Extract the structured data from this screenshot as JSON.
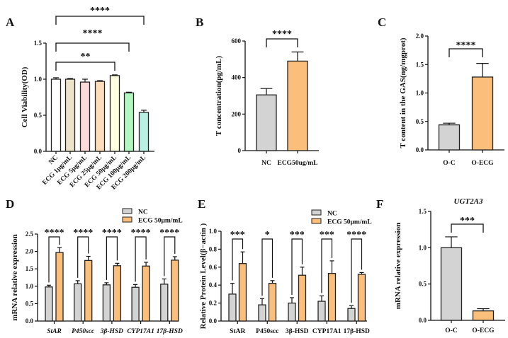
{
  "chart_data": [
    {
      "panel": "A",
      "type": "bar",
      "ylabel": "Cell Viability(OD)",
      "ylim": [
        0,
        1.5
      ],
      "yticks": [
        "0.0",
        "0.5",
        "1.0",
        "1.5"
      ],
      "categories": [
        "NC",
        "ECG 1μg/mL",
        "ECG 5μg/mL",
        "ECG 25μg/mL",
        "ECG 50μg/mL",
        "ECG 100μg/mL",
        "ECG 200μg/mL"
      ],
      "values": [
        1.0,
        1.0,
        0.96,
        0.97,
        1.05,
        0.81,
        0.54
      ],
      "errors": [
        0.02,
        0.01,
        0.04,
        0.01,
        0.01,
        0.01,
        0.03
      ],
      "colors": [
        "#ffffff",
        "#ece3c8",
        "#fbdada",
        "#fcdcb9",
        "#fefee0",
        "#b2f7c2",
        "#b6f1e4"
      ],
      "significance": [
        {
          "from": 0,
          "to": 4,
          "label": "**"
        },
        {
          "from": 0,
          "to": 5,
          "label": "****"
        },
        {
          "from": 0,
          "to": 6,
          "label": "****"
        }
      ]
    },
    {
      "panel": "B",
      "type": "bar",
      "ylabel": "T concentration(pg/mL)",
      "ylim": [
        0,
        600
      ],
      "yticks": [
        "0",
        "200",
        "400",
        "600"
      ],
      "categories": [
        "NC",
        "ECG50ug/mL"
      ],
      "values": [
        305,
        490
      ],
      "errors": [
        35,
        50
      ],
      "colors": [
        "#d3d3d3",
        "#fbbf7b"
      ],
      "significance": [
        {
          "from": 0,
          "to": 1,
          "label": "****"
        }
      ]
    },
    {
      "panel": "C",
      "type": "bar",
      "ylabel": "T content in the GAS(ng/mgprot)",
      "ylim": [
        0,
        2.0
      ],
      "yticks": [
        "0.0",
        "0.5",
        "1.0",
        "1.5",
        "2.0"
      ],
      "categories": [
        "O-C",
        "O-ECG"
      ],
      "values": [
        0.44,
        1.28
      ],
      "errors": [
        0.03,
        0.24
      ],
      "colors": [
        "#d3d3d3",
        "#fbbf7b"
      ],
      "significance": [
        {
          "from": 0,
          "to": 1,
          "label": "****"
        }
      ]
    },
    {
      "panel": "D",
      "type": "grouped-bar",
      "ylabel": "mRNA  relative expression",
      "ylim": [
        0,
        2.5
      ],
      "yticks": [
        "0.0",
        "0.5",
        "1.0",
        "1.5",
        "2.0",
        "2.5"
      ],
      "categories": [
        "StAR",
        "P450scc",
        "3β-HSD",
        "CYP17A1",
        "17β-HSD"
      ],
      "italic_categories": true,
      "legend": "top-right",
      "series": [
        {
          "name": "NC",
          "color": "#d3d3d3",
          "values": [
            0.98,
            1.07,
            1.04,
            0.97,
            1.06
          ],
          "errors": [
            0.05,
            0.09,
            0.06,
            0.08,
            0.15
          ]
        },
        {
          "name": "ECG 50μm/mL",
          "color": "#fbbf7b",
          "values": [
            1.97,
            1.74,
            1.59,
            1.58,
            1.75
          ],
          "errors": [
            0.14,
            0.12,
            0.07,
            0.11,
            0.1
          ]
        }
      ],
      "significance": [
        "****",
        "****",
        "****",
        "****",
        "****"
      ]
    },
    {
      "panel": "E",
      "type": "grouped-bar",
      "ylabel": "Relative Protein Level(β−actin )",
      "ylim": [
        0,
        1.0
      ],
      "yticks": [
        "0.0",
        "0.2",
        "0.4",
        "0.6",
        "0.8",
        "1.0"
      ],
      "categories": [
        "StAR",
        "P450scc",
        "3β-HSD",
        "CYP17A1",
        "17β-HSD"
      ],
      "italic_categories": false,
      "legend": "top-right",
      "series": [
        {
          "name": "NC",
          "color": "#d3d3d3",
          "values": [
            0.3,
            0.18,
            0.2,
            0.22,
            0.14
          ],
          "errors": [
            0.12,
            0.07,
            0.06,
            0.06,
            0.03
          ]
        },
        {
          "name": "ECG 50μm/mL",
          "color": "#fbbf7b",
          "values": [
            0.64,
            0.42,
            0.51,
            0.53,
            0.52
          ],
          "errors": [
            0.13,
            0.03,
            0.09,
            0.14,
            0.02
          ]
        }
      ],
      "significance": [
        "***",
        "*",
        "***",
        "***",
        "****"
      ]
    },
    {
      "panel": "F",
      "type": "bar",
      "title": "UGT2A3",
      "ylabel": "mRNA  relative expression",
      "ylim": [
        0,
        1.5
      ],
      "yticks": [
        "0.0",
        "0.5",
        "1.0",
        "1.5"
      ],
      "categories": [
        "O-C",
        "O-ECG"
      ],
      "values": [
        1.0,
        0.13
      ],
      "errors": [
        0.15,
        0.03
      ],
      "colors": [
        "#d3d3d3",
        "#fbbf7b"
      ],
      "significance": [
        {
          "from": 0,
          "to": 1,
          "label": "***"
        }
      ]
    }
  ]
}
